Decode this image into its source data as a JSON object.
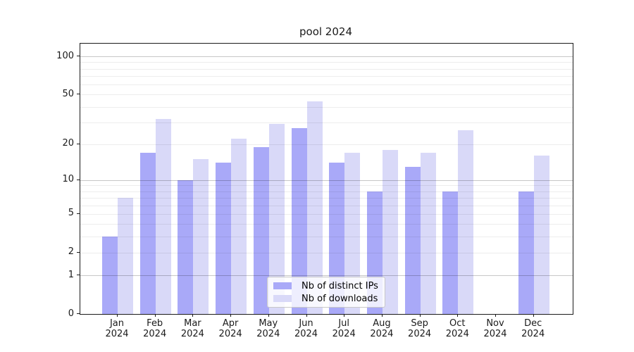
{
  "figure": {
    "title": "pool 2024"
  },
  "chart_data": {
    "type": "bar",
    "title": "pool 2024",
    "categories": [
      "Jan 2024",
      "Feb 2024",
      "Mar 2024",
      "Apr 2024",
      "May 2024",
      "Jun 2024",
      "Jul 2024",
      "Aug 2024",
      "Sep 2024",
      "Oct 2024",
      "Nov 2024",
      "Dec 2024"
    ],
    "series": [
      {
        "name": "Nb of distinct IPs",
        "color": "#a9a9f8",
        "values": [
          3,
          17,
          10,
          14,
          19,
          27,
          14,
          8,
          13,
          8,
          0,
          8
        ]
      },
      {
        "name": "Nb of downloads",
        "color": "#d9d9f8",
        "values": [
          7,
          32,
          15,
          22,
          29,
          44,
          17,
          18,
          17,
          26,
          0,
          16
        ]
      }
    ],
    "xlabel": "",
    "ylabel": "",
    "yscale": "log1p",
    "ylim": [
      0,
      126
    ],
    "yticks": [
      0,
      1,
      2,
      5,
      10,
      20,
      50,
      100
    ],
    "grid": "on",
    "grid_major_values": [
      1,
      10,
      100
    ],
    "grid_minor_values": [
      2,
      3,
      4,
      5,
      6,
      7,
      8,
      9,
      20,
      30,
      40,
      50,
      60,
      70,
      80,
      90
    ],
    "legend": {
      "position": "lower-center",
      "labels": [
        "Nb of distinct IPs",
        "Nb of downloads"
      ]
    },
    "colors": {
      "bar_distinct_ips": "#a9a9f8",
      "bar_downloads": "#d9d9f8",
      "axis": "#1a1a1a"
    }
  }
}
